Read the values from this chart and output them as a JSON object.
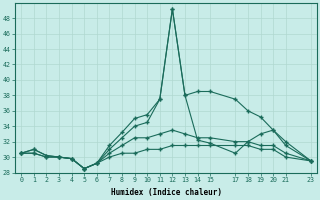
{
  "xlabel": "Humidex (Indice chaleur)",
  "background_color": "#c8ece8",
  "grid_color": "#b0d8d0",
  "line_color": "#1a6b5a",
  "x": [
    0,
    1,
    2,
    3,
    4,
    5,
    6,
    7,
    8,
    9,
    10,
    11,
    12,
    13,
    14,
    15,
    17,
    18,
    19,
    20,
    21,
    23
  ],
  "line1_y": [
    30.5,
    31.0,
    30.2,
    30.0,
    29.8,
    28.5,
    29.2,
    31.5,
    33.2,
    35.0,
    35.5,
    37.5,
    49.2,
    38.0,
    38.5,
    38.5,
    37.5,
    36.0,
    35.2,
    33.5,
    32.0,
    29.5
  ],
  "line2_y": [
    30.5,
    31.0,
    30.2,
    30.0,
    29.8,
    28.5,
    29.2,
    31.0,
    32.5,
    34.0,
    34.5,
    37.5,
    49.2,
    38.0,
    32.2,
    31.8,
    30.5,
    32.0,
    33.0,
    33.5,
    31.5,
    29.5
  ],
  "line3_y": [
    30.5,
    30.5,
    30.0,
    30.0,
    29.8,
    28.5,
    29.2,
    30.5,
    31.5,
    32.5,
    32.5,
    33.0,
    33.5,
    33.0,
    32.5,
    32.5,
    32.0,
    32.0,
    31.5,
    31.5,
    30.5,
    29.5
  ],
  "line4_y": [
    30.5,
    30.5,
    30.0,
    30.0,
    29.8,
    28.5,
    29.2,
    30.0,
    30.5,
    30.5,
    31.0,
    31.0,
    31.5,
    31.5,
    31.5,
    31.5,
    31.5,
    31.5,
    31.0,
    31.0,
    30.0,
    29.5
  ],
  "ylim": [
    28,
    50
  ],
  "yticks": [
    28,
    30,
    32,
    34,
    36,
    38,
    40,
    42,
    44,
    46,
    48
  ],
  "xticks": [
    0,
    1,
    2,
    3,
    4,
    5,
    6,
    7,
    8,
    9,
    10,
    11,
    12,
    13,
    14,
    15,
    17,
    18,
    19,
    20,
    21,
    23
  ],
  "xlim": [
    -0.5,
    23.5
  ]
}
